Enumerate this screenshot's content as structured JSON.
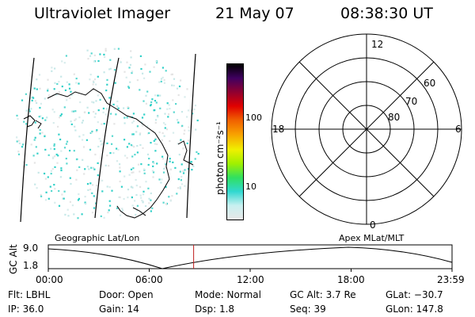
{
  "header": {
    "instrument": "Ultraviolet Imager",
    "date": "21 May 07",
    "time": "08:38:30 UT"
  },
  "colorbar": {
    "unit_label": "photon cm⁻²s⁻¹",
    "ticks": [
      "100",
      "10"
    ],
    "colors": [
      "#e8e8e8",
      "#c8f0f0",
      "#30d8d0",
      "#30e060",
      "#a0f000",
      "#f0f000",
      "#f8a000",
      "#f06000",
      "#e00000",
      "#900030",
      "#400060",
      "#000000"
    ]
  },
  "polar_plot": {
    "mlt_labels": [
      "12",
      "18",
      "6",
      "0"
    ],
    "lat_labels": [
      "60",
      "70",
      "80"
    ]
  },
  "timeline": {
    "left_label": "Geographic Lat/Lon",
    "right_label": "Apex MLat/MLT",
    "axis_label": "GC Alt",
    "y_ticks": [
      "9.0",
      "1.8"
    ],
    "x_ticks": [
      "00:00",
      "06:00",
      "12:00",
      "18:00",
      "23:59"
    ],
    "current_time_fraction": 0.36,
    "marker_color": "#c02020"
  },
  "status": {
    "flt": "Flt: LBHL",
    "ip": "IP: 36.0",
    "door": "Door: Open",
    "gain": "Gain: 14",
    "mode": "Mode: Normal",
    "dsp": "Dsp:    1.8",
    "gc_alt": "GC Alt: 3.7 Re",
    "seq": "Seq: 39",
    "glat": "GLat: −30.7",
    "glon": "GLon: 147.8"
  }
}
